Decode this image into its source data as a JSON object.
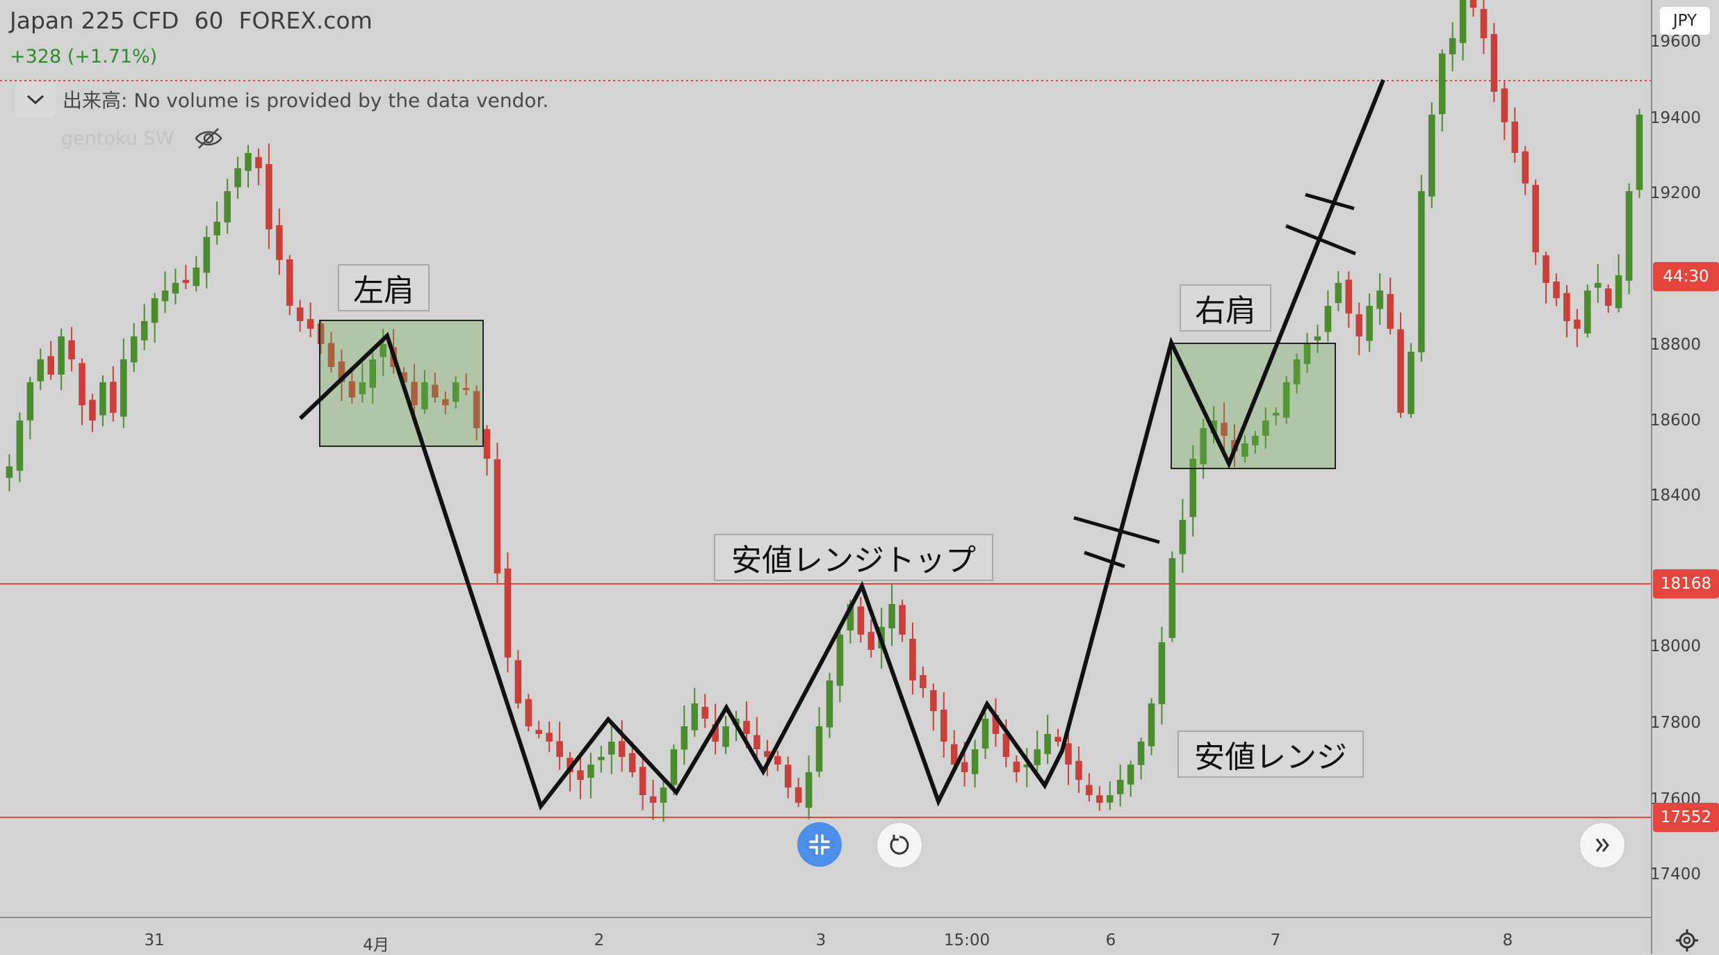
{
  "header": {
    "symbol": "Japan 225 CFD",
    "interval": "60",
    "exchange": "FOREX.com",
    "change": "+328 (+1.71%)",
    "change_color": "#2e8b2e"
  },
  "volume": {
    "label": "出来高: No volume is provided by the data vendor."
  },
  "indicator": {
    "name": "gentoku SW"
  },
  "currency_button": "JPY",
  "y_axis": {
    "ticks": [
      "19600",
      "19400",
      "19200",
      "18800",
      "18600",
      "18400",
      "18000",
      "17800",
      "17600",
      "17400"
    ],
    "price_labels": {
      "countdown": "44:30",
      "line_upper": "18168",
      "line_lower": "17552"
    }
  },
  "x_axis": {
    "ticks": [
      "31",
      "4月",
      "2",
      "3",
      "15:00",
      "6",
      "7",
      "8"
    ]
  },
  "annotations": {
    "left_shoulder": "左肩",
    "right_shoulder": "右肩",
    "range_top": "安値レンジトップ",
    "range": "安値レンジ"
  },
  "colors": {
    "up": "#4b8c2f",
    "down": "#c9403a",
    "hline": "#e4453c",
    "box_fill": "rgba(106,168,79,0.32)",
    "trend_line": "#111111"
  },
  "chart_data": {
    "type": "candlestick",
    "symbol": "Japan 225 CFD",
    "interval": "60",
    "ylim": [
      17300,
      19700
    ],
    "x_ticks": [
      "31",
      "4月",
      "2",
      "3",
      "15:00",
      "6",
      "7",
      "8"
    ],
    "y_ticks": [
      17400,
      17600,
      17800,
      18000,
      18400,
      18600,
      18800,
      19200,
      19400,
      19600
    ],
    "horizontal_lines": [
      18168,
      17552
    ],
    "close_path": [
      18480,
      18600,
      18700,
      18760,
      18720,
      18820,
      18760,
      18640,
      18600,
      18700,
      18620,
      18760,
      18820,
      18860,
      18920,
      18940,
      18960,
      18960,
      19000,
      19080,
      19120,
      19200,
      19260,
      19300,
      19260,
      19100,
      19020,
      18900,
      18860,
      18840,
      18800,
      18740,
      18700,
      18660,
      18700,
      18760,
      18800,
      18740,
      18700,
      18640,
      18700,
      18660,
      18640,
      18700,
      18680,
      18580,
      18500,
      18200,
      17980,
      17860,
      17800,
      17780,
      17760,
      17720,
      17680,
      17660,
      17700,
      17720,
      17760,
      17720,
      17680,
      17620,
      17600,
      17640,
      17740,
      17800,
      17860,
      17820,
      17760,
      17800,
      17820,
      17780,
      17740,
      17720,
      17700,
      17640,
      17600,
      17680,
      17800,
      17920,
      18040,
      18120,
      18040,
      18000,
      18060,
      18120,
      18040,
      17920,
      17900,
      17840,
      17760,
      17700,
      17680,
      17740,
      17820,
      17780,
      17720,
      17680,
      17700,
      17740,
      17780,
      17760,
      17700,
      17660,
      17620,
      17600,
      17620,
      17660,
      17700,
      17760,
      17860,
      18020,
      18240,
      18340,
      18500,
      18580,
      18600,
      18560,
      18520,
      18540,
      18560,
      18600,
      18620,
      18700,
      18760,
      18800,
      18820,
      18900,
      18960,
      18880,
      18820,
      18900,
      18940,
      18840,
      18620,
      18780,
      19200,
      19400,
      19560,
      19600,
      19700,
      19680,
      19600,
      19460,
      19380,
      19300,
      19220,
      19040,
      18960,
      18920,
      18860,
      18840,
      18940,
      18960,
      18900,
      18980,
      19200,
      19400
    ],
    "annotations": [
      "左肩",
      "右肩",
      "安値レンジトップ",
      "安値レンジ"
    ]
  }
}
